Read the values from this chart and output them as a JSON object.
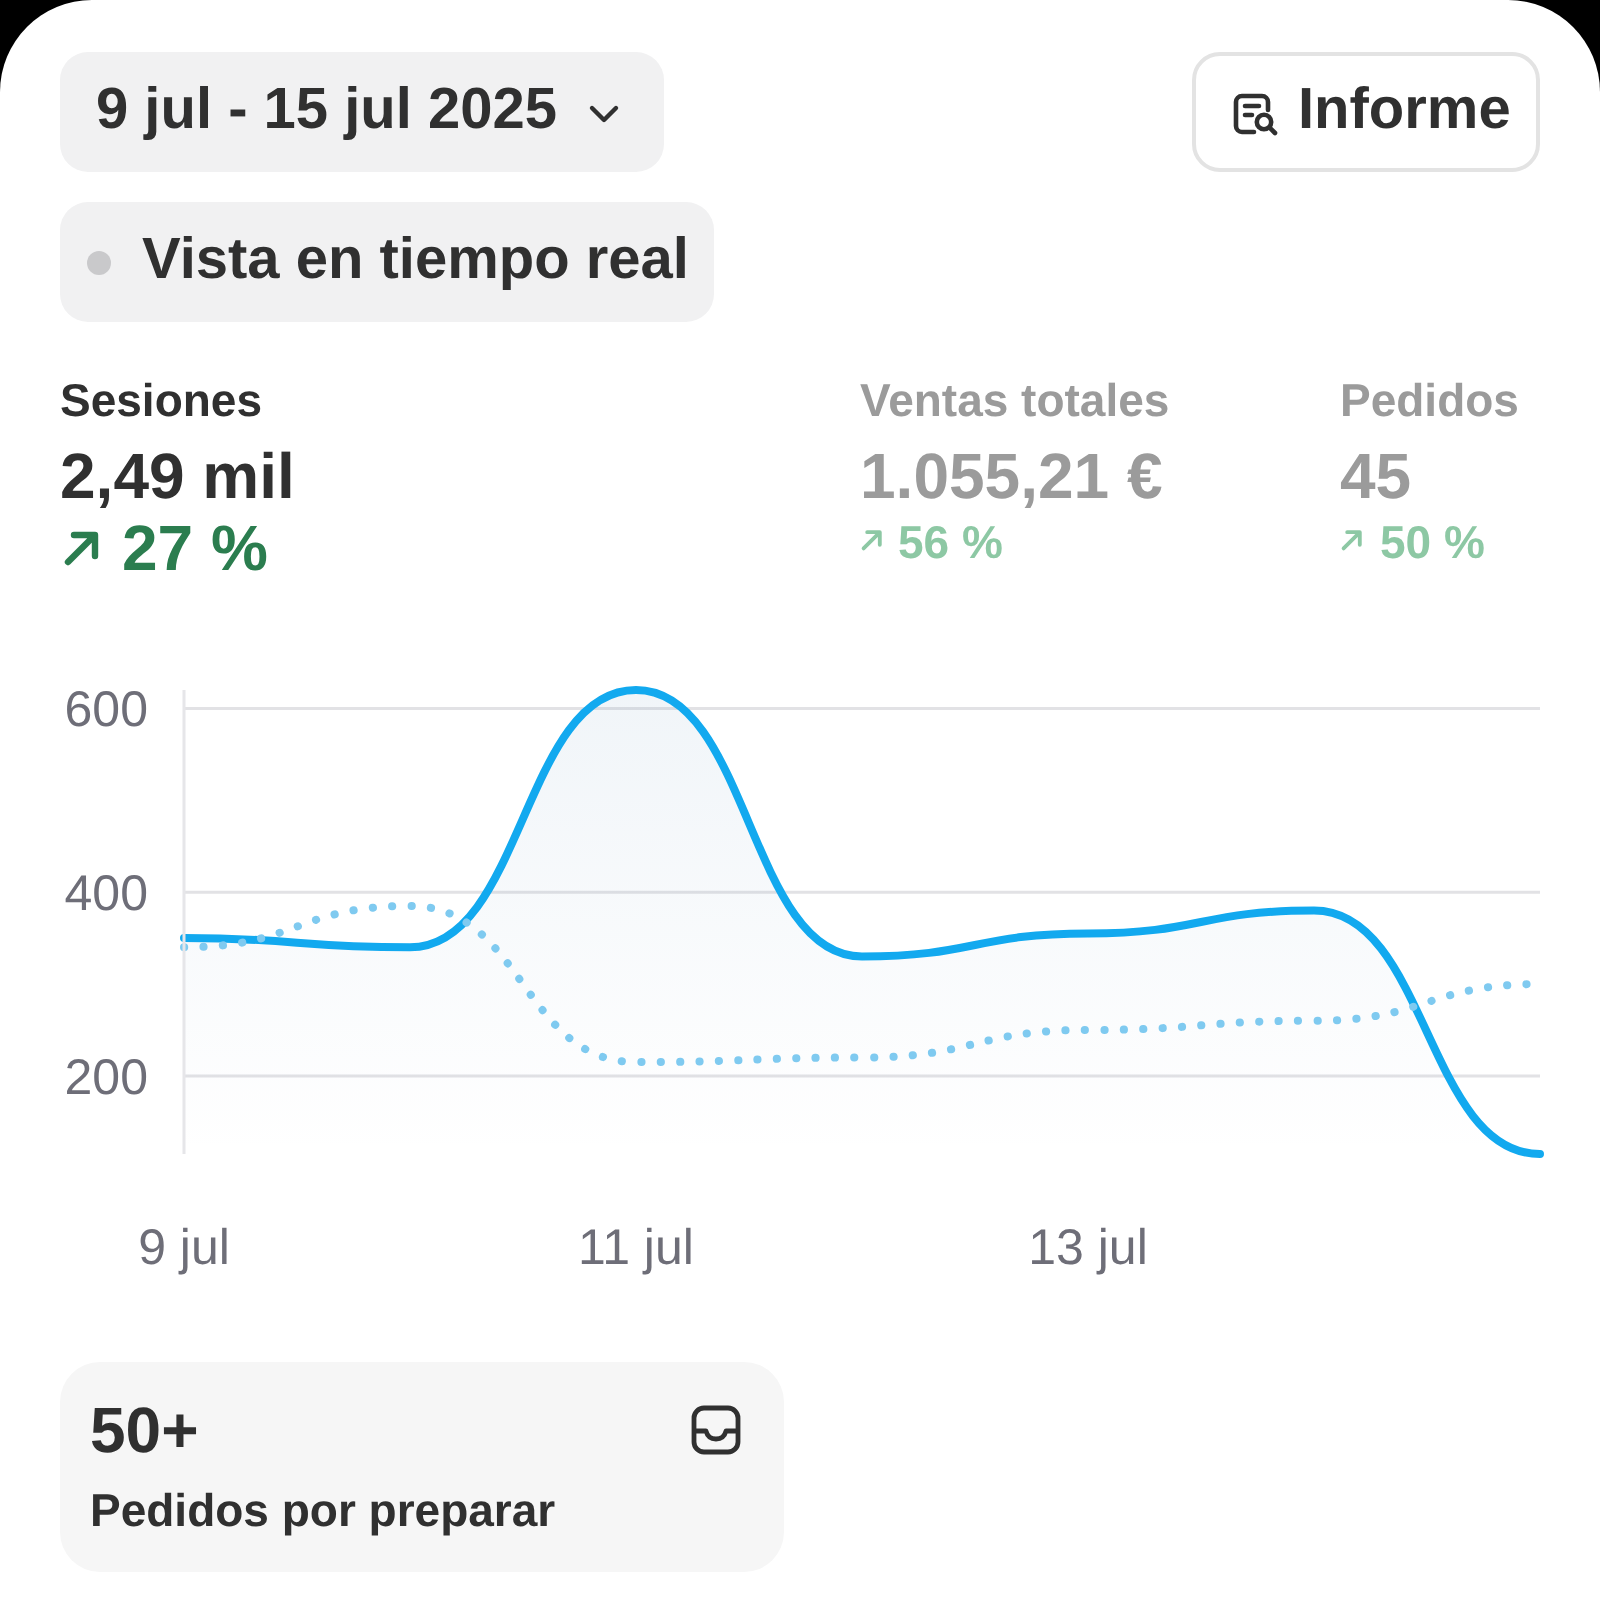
{
  "chart_data": {
    "type": "line",
    "annotations": [
      "9 jul - 15 jul 2025",
      "Informe",
      "Vista en tiempo real",
      "Sesiones",
      "2,49 mil",
      "27 %",
      "Ventas totales",
      "1.055,21 €",
      "56 %",
      "Pedidos",
      "45",
      "50 %",
      "50+",
      "Pedidos por preparar"
    ],
    "categories": [
      "9 jul",
      null,
      "11 jul",
      null,
      "13 jul",
      null,
      null
    ],
    "series": [
      {
        "type": "line",
        "color": "#7fcaf0",
        "line_style": "dotted",
        "values": [
          340,
          385,
          215,
          220,
          250,
          260,
          300
        ]
      },
      {
        "type": "area",
        "color": "#12a9ef",
        "line_style": "solid",
        "values": [
          350,
          340,
          620,
          330,
          355,
          380,
          115
        ]
      }
    ],
    "ylim": [
      115,
      620
    ],
    "yticks": [
      200,
      400,
      600
    ],
    "grid": "y"
  }
}
